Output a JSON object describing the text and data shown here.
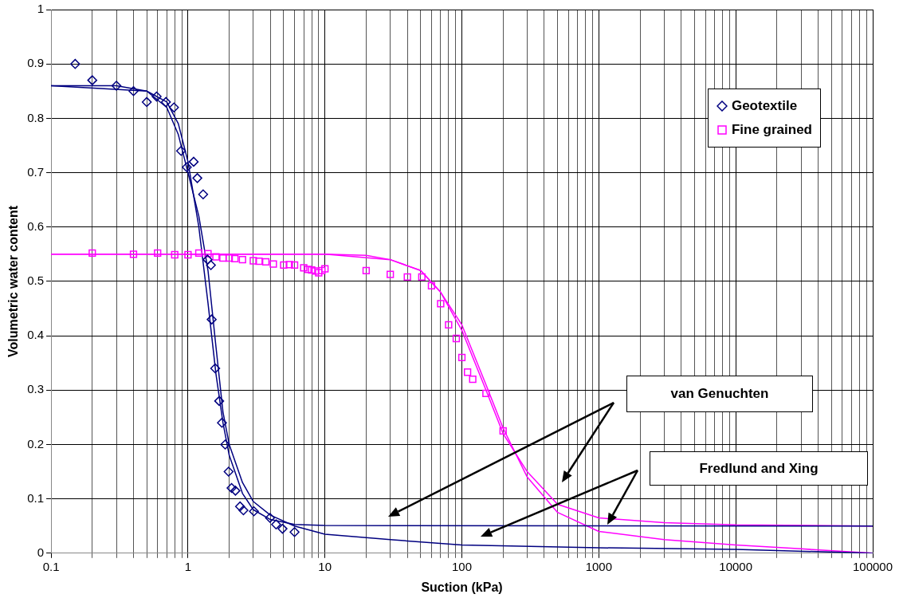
{
  "chart_data": {
    "type": "scatter",
    "xlabel": "Suction (kPa)",
    "ylabel": "Volumetric water content",
    "log": "x",
    "xlim": [
      0.1,
      100000
    ],
    "xticks": [
      {
        "value": 0.1,
        "label": "0.1"
      },
      1,
      10,
      100,
      1000,
      10000,
      100000
    ],
    "ylim": [
      0,
      1
    ],
    "yticks": [
      0,
      0.1,
      0.2,
      0.3,
      0.4,
      0.5,
      0.6,
      0.7,
      0.8,
      0.9,
      1
    ],
    "grid": true,
    "legend": "top right",
    "annotations": [
      "van Genuchten",
      "Fredlund and Xing"
    ],
    "series": [
      {
        "name": "Geotextile",
        "type": "scatter",
        "marker": "diamond",
        "color": "#000080",
        "x": [
          0.15,
          0.2,
          0.3,
          0.4,
          0.5,
          0.59,
          0.69,
          0.79,
          0.89,
          0.98,
          1.1,
          1.17,
          1.29,
          1.39,
          1.47,
          1.49,
          1.58,
          1.69,
          1.77,
          1.87,
          1.98,
          2.08,
          2.22,
          2.4,
          2.54,
          3.03,
          3.97,
          4.4,
          4.9,
          6.0
        ],
        "values": [
          0.9,
          0.87,
          0.86,
          0.85,
          0.83,
          0.84,
          0.83,
          0.82,
          0.74,
          0.71,
          0.72,
          0.69,
          0.66,
          0.54,
          0.53,
          0.43,
          0.34,
          0.28,
          0.24,
          0.2,
          0.15,
          0.12,
          0.115,
          0.086,
          0.079,
          0.077,
          0.065,
          0.053,
          0.045,
          0.039
        ]
      },
      {
        "name": "Fine grained",
        "type": "scatter",
        "marker": "square",
        "color": "#ff00ff",
        "x": [
          0.2,
          0.4,
          0.6,
          0.8,
          1.0,
          1.2,
          1.4,
          1.6,
          1.8,
          2.0,
          2.2,
          2.5,
          3.0,
          3.3,
          3.7,
          4.2,
          5,
          5.5,
          6,
          7,
          7.5,
          8,
          8.5,
          9,
          9.5,
          10,
          20,
          30,
          40,
          51,
          60,
          70,
          80,
          91,
          100,
          110,
          120,
          150,
          200
        ],
        "values": [
          0.552,
          0.55,
          0.552,
          0.549,
          0.549,
          0.552,
          0.551,
          0.545,
          0.543,
          0.543,
          0.542,
          0.54,
          0.538,
          0.537,
          0.536,
          0.532,
          0.53,
          0.531,
          0.53,
          0.525,
          0.522,
          0.521,
          0.519,
          0.516,
          0.52,
          0.523,
          0.52,
          0.513,
          0.508,
          0.508,
          0.492,
          0.459,
          0.42,
          0.395,
          0.36,
          0.333,
          0.32,
          0.294,
          0.225
        ]
      },
      {
        "type": "line",
        "marker": "none",
        "color": "#000080",
        "x": [
          0.1,
          0.3,
          0.5,
          0.7,
          0.85,
          1.0,
          1.2,
          1.4,
          1.6,
          1.8,
          2.0,
          2.5,
          3,
          4,
          6,
          10,
          100000
        ],
        "values": [
          0.86,
          0.86,
          0.85,
          0.83,
          0.79,
          0.72,
          0.6,
          0.46,
          0.33,
          0.24,
          0.18,
          0.11,
          0.08,
          0.062,
          0.053,
          0.051,
          0.05
        ]
      },
      {
        "type": "line",
        "marker": "none",
        "color": "#000080",
        "x": [
          0.1,
          0.5,
          0.7,
          0.85,
          1.0,
          1.2,
          1.4,
          1.6,
          1.8,
          2.0,
          2.5,
          3,
          4,
          6,
          10,
          30,
          100,
          1000,
          10000,
          100000
        ],
        "values": [
          0.86,
          0.85,
          0.82,
          0.77,
          0.7,
          0.62,
          0.52,
          0.38,
          0.26,
          0.2,
          0.13,
          0.095,
          0.07,
          0.05,
          0.035,
          0.025,
          0.015,
          0.01,
          0.007,
          0
        ]
      },
      {
        "type": "line",
        "marker": "none",
        "color": "#ff00ff",
        "x": [
          0.1,
          10,
          20,
          30,
          50,
          70,
          100,
          150,
          200,
          300,
          500,
          1000,
          3000,
          10000,
          100000
        ],
        "values": [
          0.55,
          0.55,
          0.548,
          0.54,
          0.52,
          0.48,
          0.41,
          0.3,
          0.22,
          0.15,
          0.09,
          0.065,
          0.056,
          0.052,
          0.05
        ]
      },
      {
        "type": "line",
        "marker": "none",
        "color": "#ff00ff",
        "x": [
          0.1,
          10,
          30,
          50,
          70,
          100,
          150,
          200,
          300,
          500,
          1000,
          3000,
          10000,
          30000,
          100000
        ],
        "values": [
          0.55,
          0.55,
          0.54,
          0.52,
          0.48,
          0.42,
          0.31,
          0.23,
          0.14,
          0.075,
          0.04,
          0.025,
          0.015,
          0.008,
          0
        ]
      }
    ]
  }
}
